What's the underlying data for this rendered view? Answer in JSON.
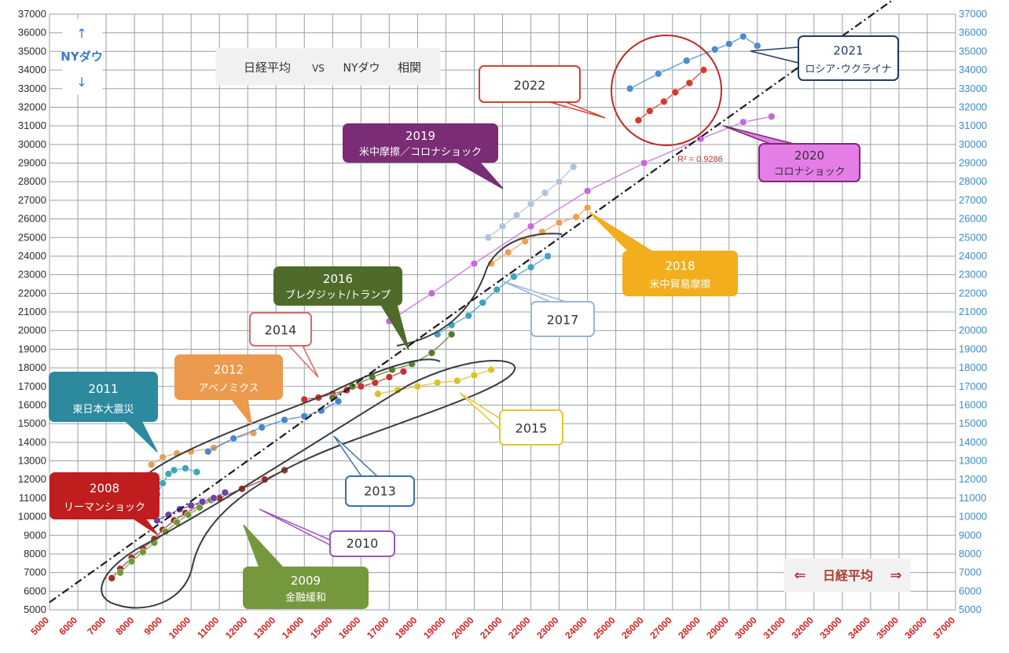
{
  "chart_data": {
    "type": "scatter",
    "title": "日経平均 VS NYダウ 相関",
    "xlabel": "日経平均",
    "ylabel": "NYダウ",
    "xlim": [
      5000,
      37000
    ],
    "ylim": [
      5000,
      37000
    ],
    "x_ticks": [
      5000,
      6000,
      7000,
      8000,
      9000,
      10000,
      11000,
      12000,
      13000,
      14000,
      15000,
      16000,
      17000,
      18000,
      19000,
      20000,
      21000,
      22000,
      23000,
      24000,
      25000,
      26000,
      27000,
      28000,
      29000,
      30000,
      31000,
      32000,
      33000,
      34000,
      35000,
      36000,
      37000
    ],
    "y_ticks": [
      5000,
      6000,
      7000,
      8000,
      9000,
      10000,
      11000,
      12000,
      13000,
      14000,
      15000,
      16000,
      17000,
      18000,
      19000,
      20000,
      21000,
      22000,
      23000,
      24000,
      25000,
      26000,
      27000,
      28000,
      29000,
      30000,
      31000,
      32000,
      33000,
      34000,
      35000,
      36000,
      37000
    ],
    "grid": true,
    "r_squared_label": "R² = 0.9286",
    "trendline": [
      [
        5000,
        5400
      ],
      [
        35000,
        38000
      ]
    ],
    "series": [
      {
        "year": "2008",
        "color": "#a12d2d",
        "x": [
          7200,
          7500,
          7900,
          8300,
          8700,
          9000,
          9400,
          9800,
          10300,
          11000,
          11800,
          12600,
          13300
        ],
        "y": [
          6700,
          7200,
          7800,
          8300,
          8800,
          9300,
          9800,
          10200,
          10600,
          11000,
          11500,
          12000,
          12500
        ]
      },
      {
        "year": "2009",
        "color": "#6e9a35",
        "x": [
          7500,
          7900,
          8300,
          8700,
          9100,
          9500,
          9900,
          10300,
          10700
        ],
        "y": [
          7000,
          7600,
          8100,
          8600,
          9200,
          9700,
          10100,
          10500,
          10900
        ]
      },
      {
        "year": "2010",
        "color": "#6b44a8",
        "x": [
          8800,
          9200,
          9600,
          10000,
          10400,
          10800,
          11200
        ],
        "y": [
          9800,
          10100,
          10400,
          10600,
          10800,
          11000,
          11300
        ]
      },
      {
        "year": "2011",
        "color": "#3fa6b8",
        "x": [
          8600,
          8800,
          9000,
          9200,
          9400,
          9800,
          10200
        ],
        "y": [
          10600,
          11200,
          11800,
          12300,
          12500,
          12600,
          12400
        ]
      },
      {
        "year": "2012",
        "color": "#e3a05a",
        "x": [
          8600,
          9000,
          9500,
          10000,
          10800,
          11500,
          12200
        ],
        "y": [
          12800,
          13200,
          13400,
          13500,
          13700,
          14200,
          14500
        ]
      },
      {
        "year": "2013",
        "color": "#4a86c8",
        "x": [
          10600,
          11500,
          12500,
          13300,
          14000,
          14600,
          15200
        ],
        "y": [
          13500,
          14200,
          14800,
          15200,
          15400,
          15700,
          16200
        ]
      },
      {
        "year": "2014",
        "color": "#c93232",
        "x": [
          14000,
          14500,
          15000,
          15500,
          16000,
          16500,
          17000,
          17500
        ],
        "y": [
          16300,
          16400,
          16600,
          16800,
          17000,
          17200,
          17500,
          17800
        ]
      },
      {
        "year": "2015",
        "color": "#d9c22a",
        "x": [
          16600,
          17300,
          18000,
          18700,
          19400,
          20000,
          20600
        ],
        "y": [
          16600,
          16800,
          17000,
          17200,
          17300,
          17600,
          17900
        ]
      },
      {
        "year": "2016",
        "color": "#557d2d",
        "x": [
          15000,
          15700,
          16400,
          17100,
          17800,
          18500,
          19200
        ],
        "y": [
          16400,
          17000,
          17500,
          17900,
          18200,
          18800,
          19800
        ]
      },
      {
        "year": "2017",
        "color": "#3fa2c1",
        "x": [
          18700,
          19200,
          19800,
          20300,
          20800,
          21400,
          22000,
          22600
        ],
        "y": [
          19800,
          20300,
          20800,
          21500,
          22200,
          22900,
          23400,
          24000
        ]
      },
      {
        "year": "2018",
        "color": "#ef9f4d",
        "x": [
          20600,
          21200,
          21800,
          22400,
          23000,
          23600,
          24000
        ],
        "y": [
          23600,
          24200,
          24800,
          25300,
          25800,
          26100,
          26600
        ]
      },
      {
        "year": "2019",
        "color": "#b0c3dc",
        "x": [
          20500,
          21000,
          21500,
          22000,
          22500,
          23000,
          23500
        ],
        "y": [
          25000,
          25600,
          26200,
          26800,
          27400,
          28000,
          28800
        ]
      },
      {
        "year": "2020",
        "color": "#c46ad9",
        "x": [
          17000,
          18500,
          20000,
          22000,
          24000,
          26000,
          28000,
          29500,
          30500
        ],
        "y": [
          20500,
          22000,
          23600,
          25600,
          27500,
          29000,
          30300,
          31200,
          31500
        ]
      },
      {
        "year": "2021",
        "color": "#4f8cc9",
        "x": [
          25500,
          26500,
          27500,
          28500,
          29000,
          29500,
          30000
        ],
        "y": [
          33000,
          33800,
          34500,
          35100,
          35400,
          35800,
          35300
        ]
      },
      {
        "year": "2022",
        "color": "#d63a2a",
        "x": [
          25800,
          26200,
          26700,
          27100,
          27600,
          28100
        ],
        "y": [
          31300,
          31800,
          32300,
          32800,
          33300,
          34000
        ]
      }
    ]
  },
  "axes": {
    "y_arrow_label": "NYダウ",
    "x_arrow_label": "日経平均",
    "arrow_left": "⇐",
    "arrow_right": "⇒"
  },
  "legend_box": {
    "title_part1": "日経平均",
    "vs": "VS",
    "title_part2": "NYダウ",
    "title_part3": "相関"
  },
  "callouts": [
    {
      "id": "c2008",
      "line1": "2008",
      "line2": "リーマンショック",
      "fill": "#c01e1e",
      "text_color": "#ffffff",
      "stroke": "#c01e1e"
    },
    {
      "id": "c2009",
      "line1": "2009",
      "line2": "金融緩和",
      "fill": "#76983c",
      "text_color": "#ffffff",
      "stroke": "#76983c"
    },
    {
      "id": "c2010",
      "line1": "2010",
      "line2": "",
      "fill": "#ffffff",
      "text_color": "#333333",
      "stroke": "#9b55c6"
    },
    {
      "id": "c2011",
      "line1": "2011",
      "line2": "東日本大震災",
      "fill": "#2d8a9e",
      "text_color": "#ffffff",
      "stroke": "#2d8a9e"
    },
    {
      "id": "c2012",
      "line1": "2012",
      "line2": "アベノミクス",
      "fill": "#ec9a4e",
      "text_color": "#ffffff",
      "stroke": "#ec9a4e"
    },
    {
      "id": "c2013",
      "line1": "2013",
      "line2": "",
      "fill": "#ffffff",
      "text_color": "#333333",
      "stroke": "#3a6fa9"
    },
    {
      "id": "c2014",
      "line1": "2014",
      "line2": "",
      "fill": "#ffffff",
      "text_color": "#333333",
      "stroke": "#d46a6a"
    },
    {
      "id": "c2015",
      "line1": "2015",
      "line2": "",
      "fill": "#ffffff",
      "text_color": "#333333",
      "stroke": "#e6c42b"
    },
    {
      "id": "c2016",
      "line1": "2016",
      "line2": "ブレグジット/トランプ",
      "fill": "#4f6b2a",
      "text_color": "#ffffff",
      "stroke": "#4f6b2a"
    },
    {
      "id": "c2017",
      "line1": "2017",
      "line2": "",
      "fill": "#ffffff",
      "text_color": "#333333",
      "stroke": "#9bb5d4"
    },
    {
      "id": "c2018",
      "line1": "2018",
      "line2": "米中貿易摩擦",
      "fill": "#f2ae1c",
      "text_color": "#ffffff",
      "stroke": "#f2ae1c"
    },
    {
      "id": "c2019",
      "line1": "2019",
      "line2": "米中摩擦／コロナショック",
      "fill": "#7a2c74",
      "text_color": "#ffffff",
      "stroke": "#7a2c74"
    },
    {
      "id": "c2020",
      "line1": "2020",
      "line2": "コロナショック",
      "fill": "#e57de6",
      "text_color": "#333333",
      "stroke": "#7a2c74"
    },
    {
      "id": "c2021",
      "line1": "2021",
      "line2": "ロシア･ウクライナ",
      "fill": "#ffffff",
      "text_color": "#233b66",
      "stroke": "#233b66"
    },
    {
      "id": "c2022",
      "line1": "2022",
      "line2": "",
      "fill": "#ffffff",
      "text_color": "#333333",
      "stroke": "#d44030"
    }
  ]
}
